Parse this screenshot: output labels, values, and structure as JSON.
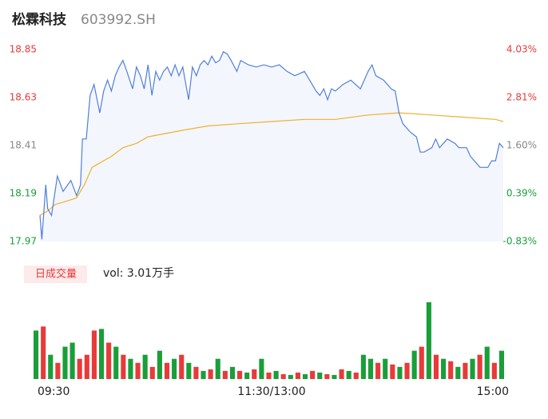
{
  "header": {
    "name": "松霖科技",
    "code": "603992.SH"
  },
  "chart_data": [
    {
      "type": "line",
      "xlim": [
        0,
        240
      ],
      "xticks": [
        {
          "value": 0,
          "label": "09:30"
        },
        {
          "value": 120,
          "label": "11:30/13:00"
        },
        {
          "value": 240,
          "label": "15:00"
        }
      ],
      "ylim": [
        17.97,
        18.85
      ],
      "yticks": [
        17.97,
        18.19,
        18.41,
        18.63,
        18.85
      ],
      "ytick_colors": [
        "#1a9e3a",
        "#1a9e3a",
        "#888888",
        "#e83a3a",
        "#e83a3a"
      ],
      "y2lim": [
        -0.83,
        4.03
      ],
      "y2ticks": [
        {
          "value": -0.83,
          "label": "-0.83%"
        },
        {
          "value": 0.39,
          "label": "0.39%"
        },
        {
          "value": 1.6,
          "label": "1.60%"
        },
        {
          "value": 2.81,
          "label": "2.81%"
        },
        {
          "value": 4.03,
          "label": "4.03%"
        }
      ],
      "area_fill": "#f3f6fc",
      "series": [
        {
          "name": "price",
          "color": "#4f7fdc",
          "x": [
            0,
            1,
            3,
            4,
            6,
            9,
            12,
            16,
            19,
            21,
            22,
            24,
            26,
            28,
            31,
            33,
            35,
            37,
            39,
            41,
            43,
            45,
            48,
            50,
            52,
            54,
            56,
            58,
            60,
            62,
            64,
            66,
            68,
            70,
            72,
            74,
            77,
            79,
            81,
            83,
            85,
            87,
            89,
            91,
            93,
            95,
            97,
            99,
            102,
            104,
            108,
            112,
            116,
            120,
            124,
            128,
            132,
            137,
            141,
            143,
            145,
            147,
            149,
            151,
            153,
            157,
            161,
            166,
            170,
            172,
            174,
            178,
            182,
            184,
            186,
            188,
            190,
            192,
            195,
            197,
            199,
            203,
            205,
            207,
            211,
            215,
            217,
            221,
            223,
            226,
            228,
            232,
            234,
            236,
            238,
            240
          ],
          "values": [
            18.09,
            17.98,
            18.23,
            18.12,
            18.09,
            18.27,
            18.2,
            18.25,
            18.18,
            18.23,
            18.44,
            18.44,
            18.64,
            18.69,
            18.56,
            18.66,
            18.71,
            18.66,
            18.73,
            18.77,
            18.8,
            18.75,
            18.67,
            18.77,
            18.73,
            18.67,
            18.78,
            18.64,
            18.75,
            18.71,
            18.75,
            18.77,
            18.73,
            18.78,
            18.73,
            18.77,
            18.62,
            18.77,
            18.73,
            18.78,
            18.8,
            18.78,
            18.82,
            18.79,
            18.8,
            18.84,
            18.83,
            18.8,
            18.75,
            18.8,
            18.78,
            18.77,
            18.78,
            18.77,
            18.78,
            18.75,
            18.73,
            18.75,
            18.69,
            18.66,
            18.64,
            18.67,
            18.62,
            18.67,
            18.66,
            18.69,
            18.71,
            18.67,
            18.75,
            18.78,
            18.73,
            18.71,
            18.67,
            18.66,
            18.56,
            18.51,
            18.49,
            18.47,
            18.45,
            18.38,
            18.38,
            18.4,
            18.44,
            18.4,
            18.44,
            18.42,
            18.4,
            18.4,
            18.36,
            18.33,
            18.31,
            18.31,
            18.34,
            18.34,
            18.42,
            18.4
          ]
        },
        {
          "name": "average",
          "color": "#f0b030",
          "x": [
            0,
            4,
            8,
            12,
            19,
            23,
            27,
            31,
            37,
            43,
            50,
            56,
            62,
            74,
            87,
            103,
            120,
            137,
            153,
            170,
            186,
            203,
            219,
            236,
            240
          ],
          "values": [
            18.09,
            18.11,
            18.14,
            18.15,
            18.17,
            18.23,
            18.31,
            18.33,
            18.36,
            18.4,
            18.42,
            18.45,
            18.46,
            18.48,
            18.5,
            18.51,
            18.52,
            18.53,
            18.53,
            18.55,
            18.56,
            18.55,
            18.54,
            18.53,
            18.52
          ]
        }
      ]
    },
    {
      "type": "volume",
      "label": "日成交量",
      "summary": "vol: 3.01万手",
      "values": [
        600,
        650,
        300,
        200,
        400,
        450,
        250,
        300,
        600,
        620,
        450,
        400,
        300,
        250,
        200,
        300,
        150,
        350,
        200,
        250,
        300,
        200,
        150,
        100,
        120,
        250,
        100,
        150,
        100,
        80,
        120,
        250,
        80,
        100,
        60,
        50,
        80,
        60,
        100,
        80,
        60,
        50,
        120,
        100,
        80,
        300,
        250,
        200,
        250,
        180,
        150,
        200,
        350,
        400,
        950,
        300,
        250,
        220,
        150,
        200,
        250,
        300,
        400,
        200,
        350
      ],
      "colors": [
        "#1a9e3a",
        "#e83a3a",
        "#1a9e3a",
        "#e83a3a",
        "#1a9e3a",
        "#1a9e3a",
        "#e83a3a",
        "#e83a3a",
        "#e83a3a",
        "#1a9e3a",
        "#e83a3a",
        "#1a9e3a",
        "#e83a3a",
        "#1a9e3a",
        "#e83a3a",
        "#1a9e3a",
        "#e83a3a",
        "#1a9e3a",
        "#e83a3a",
        "#1a9e3a",
        "#e83a3a",
        "#1a9e3a",
        "#e83a3a",
        "#1a9e3a",
        "#e83a3a",
        "#1a9e3a",
        "#e83a3a",
        "#1a9e3a",
        "#e83a3a",
        "#1a9e3a",
        "#e83a3a",
        "#1a9e3a",
        "#e83a3a",
        "#1a9e3a",
        "#e83a3a",
        "#1a9e3a",
        "#e83a3a",
        "#1a9e3a",
        "#e83a3a",
        "#1a9e3a",
        "#e83a3a",
        "#1a9e3a",
        "#e83a3a",
        "#1a9e3a",
        "#e83a3a",
        "#1a9e3a",
        "#1a9e3a",
        "#e83a3a",
        "#1a9e3a",
        "#e83a3a",
        "#1a9e3a",
        "#e83a3a",
        "#1a9e3a",
        "#e83a3a",
        "#1a9e3a",
        "#e83a3a",
        "#1a9e3a",
        "#e83a3a",
        "#1a9e3a",
        "#e83a3a",
        "#1a9e3a",
        "#e83a3a",
        "#1a9e3a",
        "#e83a3a",
        "#1a9e3a"
      ]
    }
  ]
}
